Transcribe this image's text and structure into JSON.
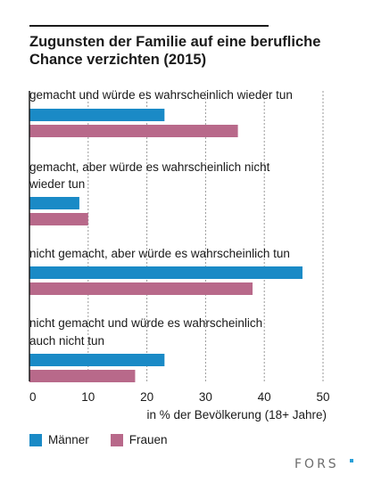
{
  "title": "Zugunsten der Familie auf eine berufliche Chance verzichten (2015)",
  "logo_text": "FORS",
  "colors": {
    "maenner": "#1a8ac6",
    "frauen": "#b8698a",
    "grid": "#9a9a9a",
    "rule": "#1a1a1a"
  },
  "chart_data": {
    "type": "bar",
    "orientation": "horizontal",
    "title": "Zugunsten der Familie auf eine berufliche Chance verzichten (2015)",
    "categories": [
      "gemacht und würde es wahrscheinlich wieder tun",
      "gemacht, aber würde es wahrscheinlich nicht wieder tun",
      "nicht gemacht, aber würde es wahrscheinlich tun",
      "nicht gemacht und würde es wahrscheinlich auch nicht tun"
    ],
    "category_lines": [
      [
        "gemacht und würde es wahrscheinlich wieder tun"
      ],
      [
        "gemacht, aber würde es wahrscheinlich nicht",
        "wieder tun"
      ],
      [
        "nicht gemacht, aber würde es wahrscheinlich tun"
      ],
      [
        "nicht gemacht und würde es wahrscheinlich",
        "auch nicht tun"
      ]
    ],
    "series": [
      {
        "name": "Männer",
        "values": [
          23.0,
          8.5,
          46.5,
          23.0
        ]
      },
      {
        "name": "Frauen",
        "values": [
          35.5,
          10.0,
          38.0,
          18.0
        ]
      }
    ],
    "xlabel": "in % der Bevölkerung (18+ Jahre)",
    "xlim": [
      0,
      50
    ],
    "xticks": [
      0,
      10,
      20,
      30,
      40,
      50
    ],
    "grid": "vertical dashed",
    "legend_position": "bottom-left"
  }
}
